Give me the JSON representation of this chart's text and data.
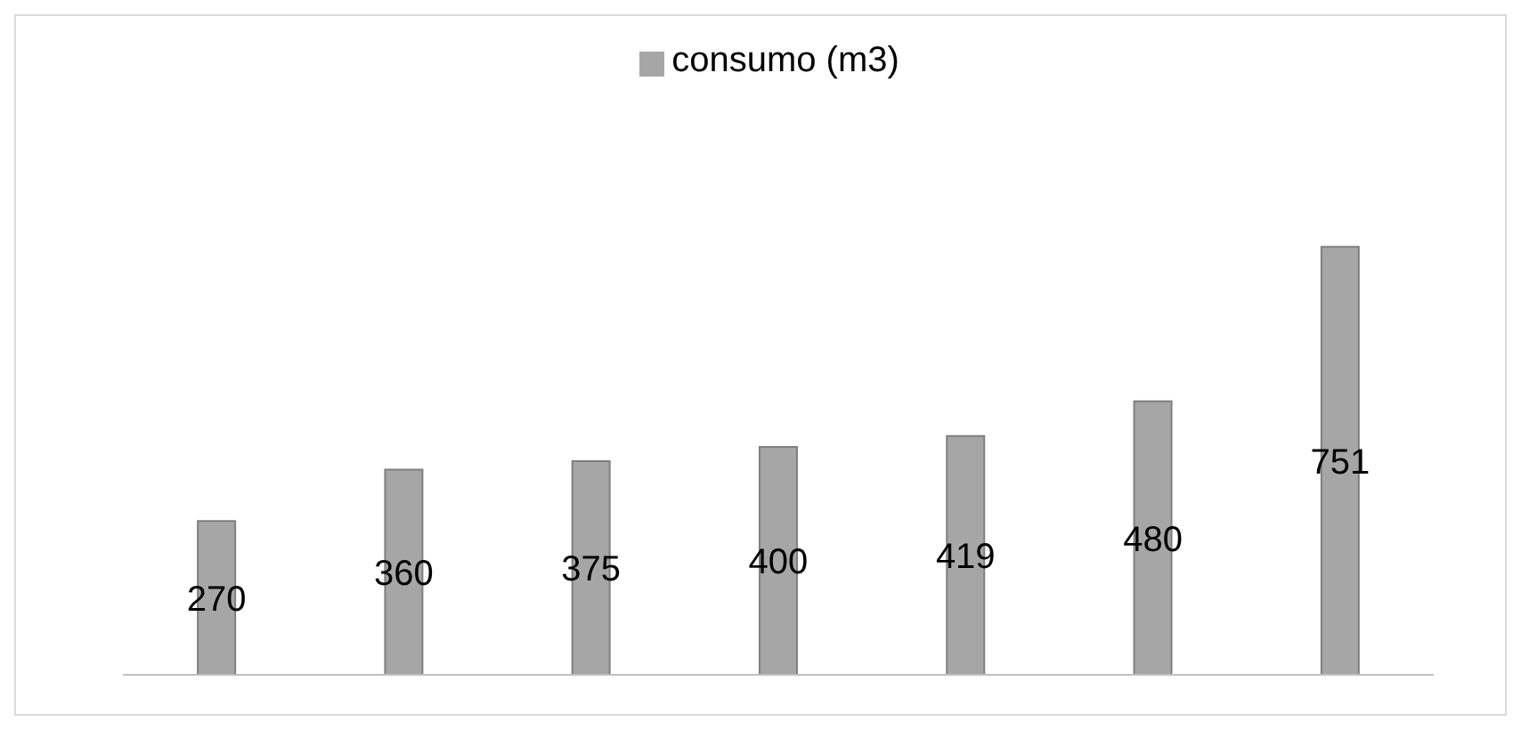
{
  "chart_data": {
    "type": "bar",
    "categories": [
      null,
      null,
      null,
      null,
      null,
      null,
      null
    ],
    "series": [
      {
        "name": "consumo (m3)",
        "color": "#a6a6a6",
        "values": [
          270,
          360,
          375,
          400,
          419,
          480,
          751
        ]
      }
    ],
    "data_labels": true,
    "legend": "top",
    "tick_labels": false,
    "grid": false
  }
}
